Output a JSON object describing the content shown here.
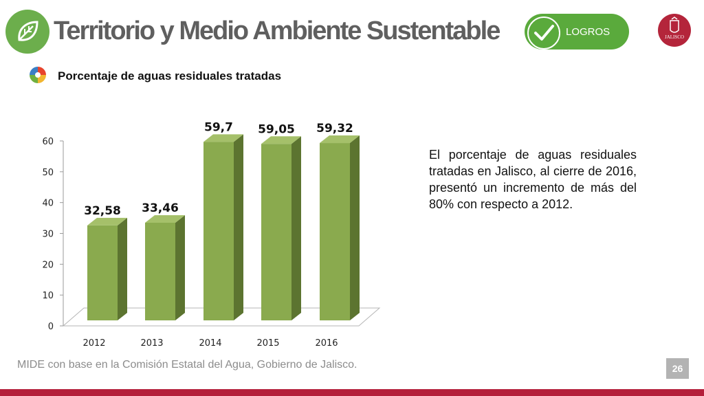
{
  "header": {
    "title": "Territorio y Medio Ambiente Sustentable",
    "badge_label": "LOGROS",
    "seal_text": "JALISCO"
  },
  "subtitle": "Porcentaje de aguas residuales tratadas",
  "description": "El porcentaje de aguas residuales tratadas en Jalisco, al cierre de 2016, presentó un incremento de más del 80% con respecto a 2012.",
  "source": "MIDE con base en la Comisión Estatal del Agua, Gobierno de Jalisco.",
  "page_number": "26",
  "colors": {
    "bar_front": "#8aaa4e",
    "bar_side": "#5c7430",
    "bar_top": "#a5c06a",
    "accent_green": "#5aaa3c",
    "brand_red": "#b41f3b"
  },
  "chart_data": {
    "type": "bar",
    "categories": [
      "2012",
      "2013",
      "2014",
      "2015",
      "2016"
    ],
    "values": [
      32.58,
      33.46,
      59.7,
      59.05,
      59.32
    ],
    "data_labels": [
      "32,58",
      "33,46",
      "59,7",
      "59,05",
      "59,32"
    ],
    "y_ticks": [
      "0",
      "10",
      "20",
      "30",
      "40",
      "50",
      "60"
    ],
    "ylim": [
      0,
      60
    ],
    "grid": false,
    "legend": "none",
    "style": "3d-column"
  }
}
